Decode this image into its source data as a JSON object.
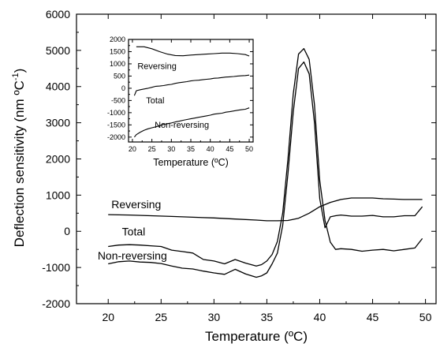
{
  "chart_data": [
    {
      "type": "line",
      "xlabel": "Temperature (ºC)",
      "ylabel": "Deflection sensitivity (nm ºC",
      "ylabel_superscript": "-1",
      "ylabel_close": ")",
      "xlim": [
        17,
        51
      ],
      "ylim": [
        -2000,
        6000
      ],
      "xticks": [
        20,
        25,
        30,
        35,
        40,
        45,
        50
      ],
      "yticks": [
        -2000,
        -1000,
        0,
        1000,
        2000,
        3000,
        4000,
        5000,
        6000
      ],
      "grid": false,
      "series": [
        {
          "name": "Reversing",
          "x": [
            20,
            22,
            24,
            26,
            28,
            30,
            32,
            34,
            35,
            36,
            37,
            38,
            39,
            40,
            41,
            42,
            43,
            44,
            45,
            46,
            47,
            48,
            49,
            49.7
          ],
          "y": [
            460,
            450,
            430,
            410,
            390,
            370,
            340,
            310,
            290,
            290,
            300,
            360,
            500,
            680,
            800,
            880,
            920,
            920,
            920,
            900,
            890,
            880,
            880,
            880
          ]
        },
        {
          "name": "Total",
          "x": [
            20,
            21,
            22,
            23,
            24,
            25,
            26,
            27,
            28,
            29,
            30,
            31,
            32,
            33,
            34,
            34.5,
            35,
            35.5,
            36,
            36.5,
            37,
            37.5,
            38,
            38.5,
            39,
            39.5,
            40,
            40.5,
            41,
            41.5,
            42,
            43,
            44,
            45,
            46,
            47,
            48,
            49,
            49.7
          ],
          "y": [
            -420,
            -380,
            -370,
            -380,
            -400,
            -420,
            -520,
            -560,
            -600,
            -780,
            -820,
            -900,
            -780,
            -880,
            -960,
            -920,
            -820,
            -640,
            -280,
            500,
            2000,
            3800,
            4900,
            5050,
            4750,
            3500,
            1400,
            300,
            -300,
            -500,
            -480,
            -500,
            -550,
            -520,
            -500,
            -540,
            -500,
            -460,
            -200
          ]
        },
        {
          "name": "Non-reversing",
          "x": [
            20,
            21,
            22,
            23,
            24,
            25,
            26,
            27,
            28,
            29,
            30,
            31,
            32,
            33,
            34,
            34.5,
            35,
            35.5,
            36,
            36.5,
            37,
            37.5,
            38,
            38.5,
            39,
            39.5,
            40,
            40.5,
            41,
            41.5,
            42,
            43,
            44,
            45,
            46,
            47,
            48,
            49,
            49.7
          ],
          "y": [
            -900,
            -840,
            -820,
            -850,
            -860,
            -890,
            -960,
            -1020,
            -1040,
            -1100,
            -1150,
            -1190,
            -1050,
            -1180,
            -1270,
            -1230,
            -1150,
            -900,
            -600,
            160,
            1600,
            3300,
            4500,
            4680,
            4350,
            3000,
            900,
            100,
            400,
            430,
            450,
            420,
            420,
            440,
            400,
            400,
            430,
            430,
            680
          ]
        }
      ]
    },
    {
      "type": "line",
      "xlabel": "Temperature (ºC)",
      "xlim": [
        19,
        51
      ],
      "ylim": [
        -2200,
        2000
      ],
      "xticks": [
        20,
        25,
        30,
        35,
        40,
        45,
        50
      ],
      "yticks": [
        -2000,
        -1500,
        -1000,
        -500,
        0,
        500,
        1000,
        1500,
        2000
      ],
      "grid": false,
      "series": [
        {
          "name": "Reversing",
          "x": [
            21,
            23,
            25,
            27,
            29,
            31,
            33,
            35,
            37,
            39,
            41,
            43,
            45,
            47,
            49,
            50
          ],
          "y": [
            1700,
            1700,
            1620,
            1500,
            1400,
            1340,
            1330,
            1360,
            1380,
            1400,
            1420,
            1440,
            1440,
            1420,
            1380,
            1320
          ]
        },
        {
          "name": "Total",
          "x": [
            20.5,
            21,
            22,
            23,
            24,
            25,
            26,
            27,
            28,
            29,
            30,
            31,
            32,
            33,
            34,
            35,
            36,
            37,
            38,
            39,
            40,
            41,
            42,
            43,
            44,
            45,
            46,
            47,
            48,
            49,
            50
          ],
          "y": [
            -300,
            -100,
            -60,
            -30,
            0,
            40,
            80,
            90,
            110,
            140,
            160,
            200,
            230,
            250,
            270,
            300,
            320,
            330,
            350,
            370,
            380,
            410,
            420,
            440,
            460,
            470,
            480,
            500,
            510,
            520,
            540
          ]
        },
        {
          "name": "Non-reversing",
          "x": [
            20.5,
            21,
            22,
            23,
            24,
            25,
            26,
            27,
            28,
            29,
            30,
            31,
            32,
            33,
            34,
            35,
            36,
            37,
            38,
            39,
            40,
            41,
            42,
            43,
            44,
            45,
            46,
            47,
            48,
            49,
            50
          ],
          "y": [
            -2000,
            -1900,
            -1800,
            -1720,
            -1660,
            -1620,
            -1580,
            -1530,
            -1480,
            -1450,
            -1420,
            -1380,
            -1350,
            -1310,
            -1280,
            -1250,
            -1220,
            -1190,
            -1160,
            -1130,
            -1100,
            -1060,
            -1040,
            -1020,
            -980,
            -960,
            -930,
            -900,
            -880,
            -860,
            -800
          ]
        }
      ]
    }
  ]
}
